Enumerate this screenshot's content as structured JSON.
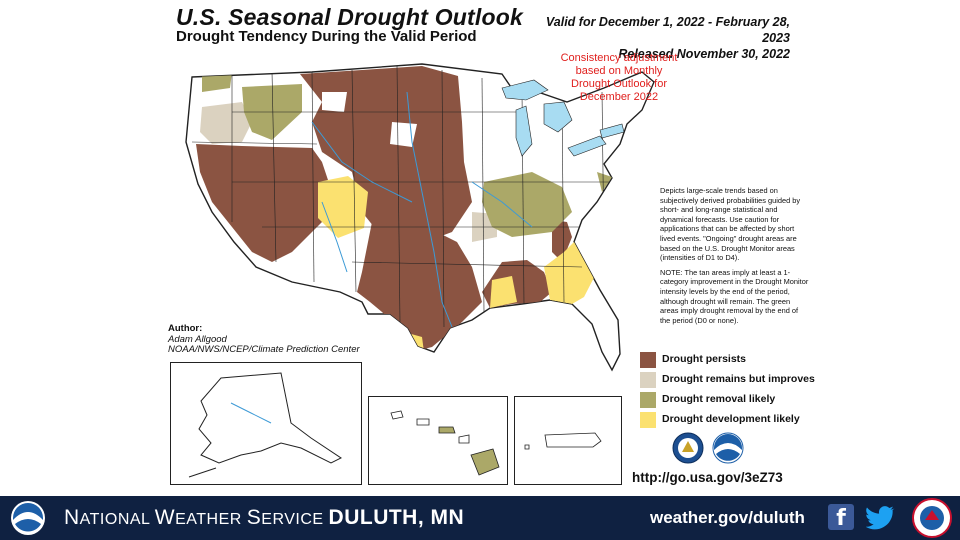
{
  "header": {
    "title": "U.S. Seasonal Drought Outlook",
    "subtitle": "Drought Tendency During the Valid Period",
    "valid": "Valid for December 1, 2022 - February 28, 2023",
    "released": "Released November 30, 2022"
  },
  "consistency_note": [
    "Consistency adjustment",
    "based on Monthly",
    "Drought Outlook for",
    "December 2022"
  ],
  "description": [
    "Depicts large-scale trends based on subjectively derived probabilities guided by short- and long-range statistical and dynamical forecasts. Use caution for applications that can be affected by short lived events. \"Ongoing\" drought areas are based on the U.S. Drought Monitor areas (intensities of D1 to D4).",
    "NOTE: The tan areas imply at least a 1-category improvement in the Drought Monitor intensity levels by the end of the period, although drought will remain. The green areas imply drought removal by the end of the period (D0 or none)."
  ],
  "author": {
    "label": "Author:",
    "name": "Adam Allgood",
    "org": "NOAA/NWS/NCEP/Climate Prediction Center"
  },
  "legend": [
    {
      "label": "Drought persists",
      "color": "#8b5442"
    },
    {
      "label": "Drought remains but improves",
      "color": "#dbd2c0"
    },
    {
      "label": "Drought removal likely",
      "color": "#aba868"
    },
    {
      "label": "Drought development likely",
      "color": "#fbe170"
    }
  ],
  "url": "http://go.usa.gov/3eZ73",
  "colors": {
    "persists": "#8b5442",
    "improves": "#dbd2c0",
    "removal": "#aba868",
    "development": "#fbe170",
    "water": "#a8dcf2",
    "footer_bg": "#0f2141"
  },
  "footer": {
    "agency_first": "N",
    "agency_rest1": "ATIONAL ",
    "agency_w": "W",
    "agency_rest2": "EATHER ",
    "agency_s": "S",
    "agency_rest3": "ERVICE ",
    "office": "DULUTH, MN",
    "website": "weather.gov/duluth",
    "facebook_glyph": "f"
  },
  "icons": [
    "noaa-logo-icon",
    "doc-seal-icon",
    "facebook-icon",
    "twitter-icon",
    "weather-ready-nation-icon"
  ]
}
